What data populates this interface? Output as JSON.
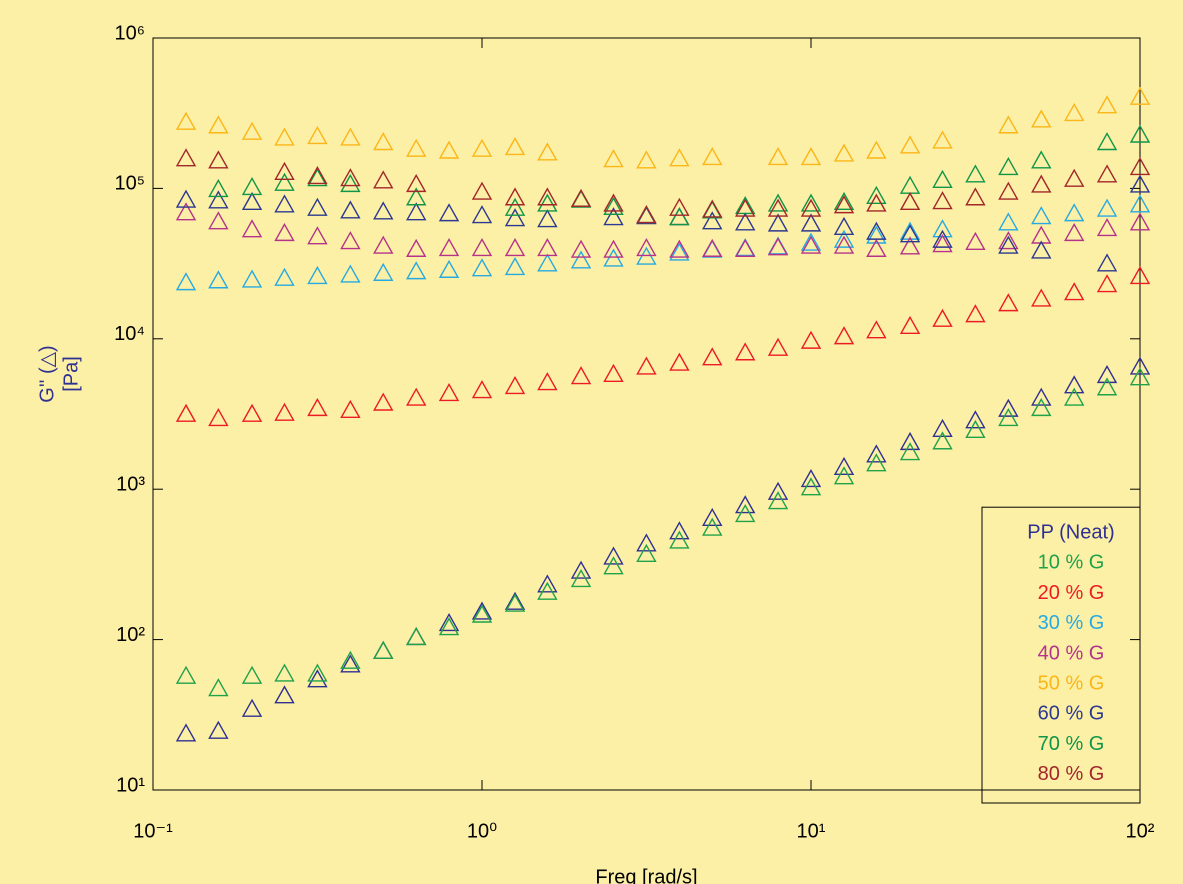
{
  "chart_data": {
    "type": "scatter",
    "xlabel": "Freq [rad/s]",
    "ylabel": [
      "G'' (△)",
      "[Pa]"
    ],
    "xscale": "log",
    "yscale": "log",
    "xlim": [
      0.1,
      100
    ],
    "ylim": [
      10,
      1000000
    ],
    "xticks": [
      {
        "value": 0.1,
        "label": "10⁻¹"
      },
      {
        "value": 1,
        "label": "10⁰"
      },
      {
        "value": 10,
        "label": "10¹"
      },
      {
        "value": 100,
        "label": "10²"
      }
    ],
    "yticks": [
      {
        "value": 10,
        "label": "10¹"
      },
      {
        "value": 100,
        "label": "10²"
      },
      {
        "value": 1000,
        "label": "10³"
      },
      {
        "value": 10000,
        "label": "10⁴"
      },
      {
        "value": 100000,
        "label": "10⁵"
      },
      {
        "value": 1000000,
        "label": "10⁶"
      }
    ],
    "legend": "lower right",
    "marker": "open-triangle",
    "x": [
      0.126,
      0.158,
      0.2,
      0.251,
      0.316,
      0.398,
      0.501,
      0.631,
      0.794,
      1,
      1.26,
      1.58,
      2,
      2.51,
      3.16,
      3.98,
      5.01,
      6.31,
      7.94,
      10,
      12.6,
      15.8,
      20,
      25.1,
      31.6,
      39.8,
      50.1,
      63.1,
      79.4,
      100
    ],
    "series": [
      {
        "name": "PP (Neat)",
        "color": "#2e3192",
        "values": [
          24,
          25,
          35,
          43,
          55,
          69,
          85,
          105,
          130,
          155,
          180,
          235,
          290,
          360,
          440,
          530,
          650,
          790,
          970,
          1180,
          1420,
          1720,
          2080,
          2540,
          2900,
          3460,
          4100,
          4950,
          5800,
          6600
        ]
      },
      {
        "name": "10 % G",
        "color": "#1fa24a",
        "values": [
          58,
          48,
          58,
          60,
          60,
          73,
          85,
          105,
          122,
          148,
          175,
          210,
          255,
          310,
          375,
          460,
          560,
          690,
          840,
          1040,
          1230,
          1500,
          1780,
          2100,
          2500,
          3000,
          3500,
          4100,
          4800,
          5600
        ]
      },
      {
        "name": "20 % G",
        "color": "#ed1c24",
        "values": [
          3200,
          3000,
          3200,
          3250,
          3500,
          3400,
          3800,
          4100,
          4400,
          4600,
          4900,
          5200,
          5700,
          5900,
          6600,
          7000,
          7600,
          8200,
          8800,
          9800,
          10500,
          11500,
          12300,
          13700,
          14700,
          17400,
          18700,
          20600,
          23300,
          26400
        ]
      },
      {
        "name": "30 % G",
        "color": "#27aae1",
        "values": [
          24000,
          24700,
          25000,
          25700,
          26400,
          27000,
          27700,
          28400,
          29000,
          29700,
          30300,
          32000,
          33500,
          34500,
          35500,
          37800,
          39500,
          40500,
          41500,
          44000,
          46000,
          49000,
          52000,
          54000,
          null,
          60000,
          66000,
          69000,
          74000,
          79000
        ]
      },
      {
        "name": "40 % G",
        "color": "#b5338a",
        "values": [
          70000,
          61000,
          54000,
          51000,
          48500,
          45000,
          42000,
          40000,
          40500,
          40500,
          40500,
          40500,
          39500,
          39500,
          40500,
          39500,
          40000,
          40000,
          41000,
          42000,
          42000,
          40000,
          41500,
          43000,
          44500,
          45000,
          49000,
          51000,
          55000,
          60000
        ]
      },
      {
        "name": "50 % G",
        "color": "#fbb617",
        "values": [
          280000,
          265000,
          240000,
          220000,
          225000,
          220000,
          205000,
          185000,
          180000,
          185000,
          190000,
          175000,
          null,
          158000,
          155000,
          160000,
          163000,
          null,
          163000,
          163000,
          172000,
          180000,
          195000,
          210000,
          null,
          265000,
          290000,
          320000,
          360000,
          410000
        ]
      },
      {
        "name": "60 % G",
        "color": "#2b3990",
        "values": [
          85000,
          84000,
          82000,
          79000,
          75000,
          72000,
          71000,
          70000,
          69000,
          67000,
          64000,
          63000,
          null,
          65000,
          66000,
          65000,
          61000,
          60000,
          59000,
          59000,
          56000,
          52000,
          50000,
          46000,
          null,
          42000,
          39000,
          null,
          32000,
          107000
        ]
      },
      {
        "name": "70 % G",
        "color": "#0f9648",
        "values": [
          null,
          100000,
          103000,
          110000,
          118000,
          108000,
          null,
          88000,
          null,
          null,
          75000,
          80000,
          85000,
          76000,
          67000,
          65000,
          72000,
          77000,
          80000,
          80000,
          82000,
          90000,
          105000,
          115000,
          125000,
          140000,
          155000,
          null,
          205000,
          230000
        ]
      },
      {
        "name": "80 % G",
        "color": "#a3262a",
        "values": [
          160000,
          155000,
          null,
          130000,
          122000,
          118000,
          114000,
          108000,
          null,
          96000,
          88000,
          88000,
          86000,
          80000,
          67000,
          75000,
          73000,
          74000,
          74000,
          74000,
          78000,
          80000,
          82000,
          83000,
          88000,
          96000,
          107000,
          117000,
          125000,
          140000
        ]
      }
    ]
  }
}
